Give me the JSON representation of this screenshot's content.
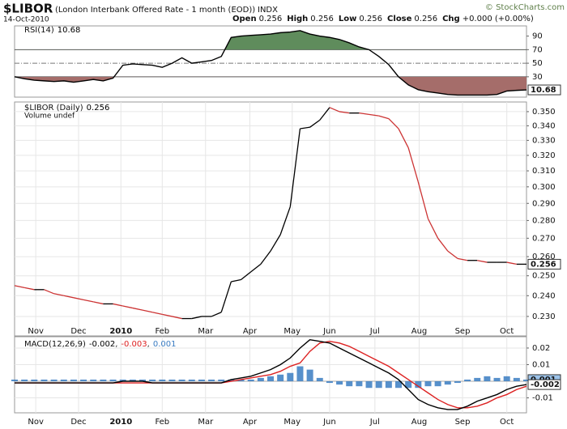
{
  "header": {
    "symbol": "$LIBOR",
    "description": "(London Interbank Offered Rate - 1 month (EOD))",
    "exchange": "INDX",
    "date": "14-Oct-2010",
    "credit": "© StockCharts.com",
    "quote": [
      {
        "label": "Open",
        "value": 0.256
      },
      {
        "label": "High",
        "value": 0.256
      },
      {
        "label": "Low",
        "value": 0.256
      },
      {
        "label": "Close",
        "value": 0.256
      },
      {
        "label": "Chg",
        "value": "+0.000 (+0.00%)"
      }
    ]
  },
  "chart_data": [
    {
      "type": "line",
      "title": "RSI(14)",
      "xlim": [
        0,
        52
      ],
      "ylim": [
        0,
        105
      ],
      "yticks": [
        90,
        70,
        50,
        30
      ],
      "upper": 70,
      "lower": 30,
      "fill_above": "#5f8c5c",
      "fill_below": "#a56d6a",
      "series": [
        {
          "color": "#000000",
          "last_value_box": true,
          "values": [
            30,
            27,
            25,
            24,
            23,
            24,
            22,
            24,
            26,
            24,
            28,
            47,
            49,
            48,
            47,
            44,
            50,
            58,
            50,
            52,
            54,
            60,
            88,
            90,
            91,
            92,
            93,
            95,
            96,
            98,
            93,
            90,
            88,
            85,
            80,
            74,
            70,
            60,
            48,
            30,
            18,
            11,
            8,
            6,
            4,
            3,
            3,
            3,
            3,
            4,
            9,
            10,
            10.68
          ]
        }
      ]
    },
    {
      "type": "line",
      "title": "$LIBOR (Daily)",
      "volume_label": "Volume undef",
      "log_scale": true,
      "grid": true,
      "xlim": [
        0,
        52
      ],
      "ylim": [
        0.221,
        0.357
      ],
      "xticks": [
        {
          "value": 2.15,
          "label": "Nov"
        },
        {
          "value": 6.5,
          "label": "Dec"
        },
        {
          "value": 10.8,
          "label": "2010",
          "bold": true
        },
        {
          "value": 15,
          "label": "Feb"
        },
        {
          "value": 19.4,
          "label": "Mar"
        },
        {
          "value": 23.9,
          "label": "Apr"
        },
        {
          "value": 28.2,
          "label": "May"
        },
        {
          "value": 32,
          "label": "Jun"
        },
        {
          "value": 36.6,
          "label": "Jul"
        },
        {
          "value": 41.1,
          "label": "Aug"
        },
        {
          "value": 45.5,
          "label": "Sep"
        },
        {
          "value": 50,
          "label": "Oct"
        }
      ],
      "yticks": [
        {
          "value": 0.35,
          "label": "0.350"
        },
        {
          "value": 0.34,
          "label": "0.340"
        },
        {
          "value": 0.33,
          "label": "0.330"
        },
        {
          "value": 0.32,
          "label": "0.320"
        },
        {
          "value": 0.31,
          "label": "0.310"
        },
        {
          "value": 0.3,
          "label": "0.300"
        },
        {
          "value": 0.29,
          "label": "0.290"
        },
        {
          "value": 0.28,
          "label": "0.280"
        },
        {
          "value": 0.27,
          "label": "0.270"
        },
        {
          "value": 0.26,
          "label": "0.260"
        },
        {
          "value": 0.25,
          "label": "0.250"
        },
        {
          "value": 0.24,
          "label": "0.240"
        },
        {
          "value": 0.23,
          "label": "0.230"
        }
      ],
      "series": [
        {
          "color": "#000000",
          "down_color": "#cc3333",
          "last_value_box": true,
          "values": [
            0.245,
            0.244,
            0.243,
            0.243,
            0.241,
            0.24,
            0.239,
            0.238,
            0.237,
            0.236,
            0.236,
            0.235,
            0.234,
            0.233,
            0.232,
            0.231,
            0.23,
            0.229,
            0.229,
            0.23,
            0.23,
            0.232,
            0.247,
            0.248,
            0.252,
            0.256,
            0.263,
            0.272,
            0.288,
            0.338,
            0.339,
            0.344,
            0.353,
            0.35,
            0.349,
            0.349,
            0.348,
            0.347,
            0.345,
            0.338,
            0.325,
            0.303,
            0.281,
            0.27,
            0.263,
            0.259,
            0.258,
            0.258,
            0.257,
            0.257,
            0.257,
            0.256,
            0.256
          ]
        }
      ]
    },
    {
      "type": "line",
      "title": "MACD(12,26,9)",
      "separator": ",",
      "grid": true,
      "xlim": [
        0,
        52
      ],
      "ylim": [
        -0.019,
        0.0268
      ],
      "yticks": [
        0.02,
        0.01,
        -0.01
      ],
      "xticks": [
        {
          "value": 2.15,
          "label": "Nov"
        },
        {
          "value": 6.5,
          "label": "Dec"
        },
        {
          "value": 10.8,
          "label": "2010",
          "bold": true
        },
        {
          "value": 15,
          "label": "Feb"
        },
        {
          "value": 19.4,
          "label": "Mar"
        },
        {
          "value": 23.9,
          "label": "Apr"
        },
        {
          "value": 28.2,
          "label": "May"
        },
        {
          "value": 32,
          "label": "Jun"
        },
        {
          "value": 36.6,
          "label": "Jul"
        },
        {
          "value": 41.1,
          "label": "Aug"
        },
        {
          "value": 45.5,
          "label": "Sep"
        },
        {
          "value": 50,
          "label": "Oct"
        }
      ],
      "series": [
        {
          "kind": "histogram",
          "color": "#3a7cc2",
          "last_value_box": true,
          "values": [
            0.001,
            0.001,
            0.001,
            0.001,
            0.001,
            0.001,
            0.001,
            0.001,
            0.001,
            0.001,
            0.001,
            0.001,
            0.001,
            0.001,
            0.001,
            0.001,
            0.001,
            0.001,
            0.001,
            0.001,
            0.001,
            0.001,
            0.001,
            0.001,
            0.001,
            0.002,
            0.003,
            0.004,
            0.005,
            0.009,
            0.007,
            0.002,
            -0.001,
            -0.002,
            -0.003,
            -0.003,
            -0.004,
            -0.004,
            -0.004,
            -0.004,
            -0.004,
            -0.004,
            -0.003,
            -0.003,
            -0.002,
            -0.001,
            0.001,
            0.002,
            0.003,
            0.002,
            0.003,
            0.002,
            0.001
          ]
        },
        {
          "color": "#dd2222",
          "values": [
            -0.001,
            -0.001,
            -0.001,
            -0.001,
            -0.001,
            -0.001,
            -0.001,
            -0.001,
            -0.001,
            -0.001,
            -0.001,
            -0.001,
            -0.001,
            -0.001,
            -0.001,
            -0.001,
            -0.001,
            -0.001,
            -0.001,
            -0.001,
            -0.001,
            -0.001,
            0.0,
            0.001,
            0.002,
            0.003,
            0.004,
            0.006,
            0.009,
            0.011,
            0.018,
            0.023,
            0.024,
            0.023,
            0.021,
            0.018,
            0.015,
            0.012,
            0.009,
            0.005,
            0.001,
            -0.003,
            -0.007,
            -0.011,
            -0.014,
            -0.016,
            -0.016,
            -0.015,
            -0.013,
            -0.01,
            -0.008,
            -0.005,
            -0.003
          ]
        },
        {
          "color": "#000000",
          "last_value_box": true,
          "values": [
            -0.001,
            -0.001,
            -0.001,
            -0.001,
            -0.001,
            -0.001,
            -0.001,
            -0.001,
            -0.001,
            -0.001,
            -0.001,
            0.0,
            0.0,
            0.0,
            -0.001,
            -0.001,
            -0.001,
            -0.001,
            -0.001,
            -0.001,
            -0.001,
            -0.001,
            0.001,
            0.002,
            0.003,
            0.005,
            0.007,
            0.01,
            0.014,
            0.02,
            0.025,
            0.024,
            0.023,
            0.02,
            0.017,
            0.014,
            0.011,
            0.008,
            0.005,
            0.001,
            -0.005,
            -0.011,
            -0.014,
            -0.016,
            -0.017,
            -0.017,
            -0.015,
            -0.012,
            -0.01,
            -0.008,
            -0.005,
            -0.003,
            -0.002
          ]
        }
      ]
    }
  ]
}
